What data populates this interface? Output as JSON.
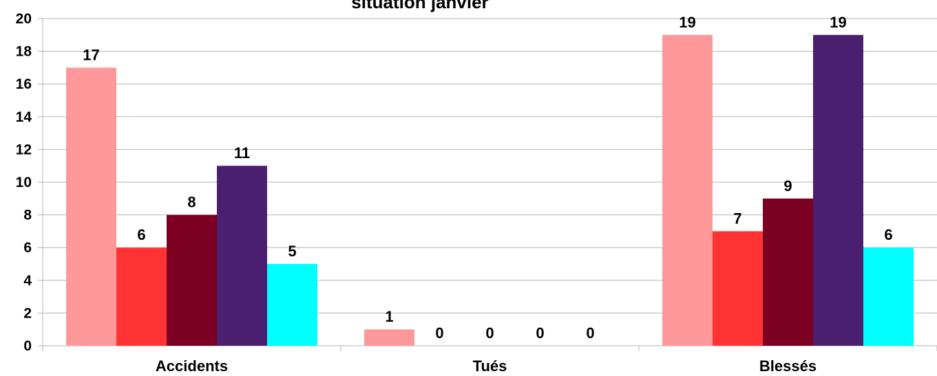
{
  "chart_data": {
    "type": "bar",
    "title": "situation janvier",
    "categories": [
      "Accidents",
      "Tués",
      "Blessés"
    ],
    "series": [
      {
        "values": [
          17,
          1,
          19
        ],
        "color": "#ff9999"
      },
      {
        "values": [
          6,
          0,
          7
        ],
        "color": "#ff3333"
      },
      {
        "values": [
          8,
          0,
          9
        ],
        "color": "#7b0022"
      },
      {
        "values": [
          11,
          0,
          19
        ],
        "color": "#4b1f6f"
      },
      {
        "values": [
          5,
          0,
          6
        ],
        "color": "#00ffff"
      }
    ],
    "ylim": [
      0,
      20
    ],
    "yticks": [
      0,
      2,
      4,
      6,
      8,
      10,
      12,
      14,
      16,
      18,
      20
    ],
    "grid": true,
    "legend": "none",
    "data_labels": true
  }
}
